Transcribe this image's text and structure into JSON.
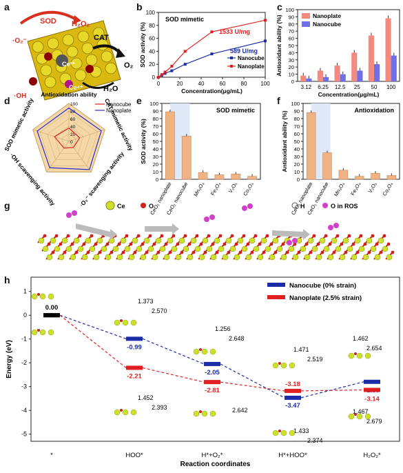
{
  "panels": {
    "a": {
      "label": "a",
      "labels": {
        "sod": "SOD",
        "h2o2": "H₂O₂",
        "o2_rad": "·O₂⁻",
        "cat": "CAT",
        "o2": "O₂",
        "ce3": "Ce³⁺",
        "ce4": "Ce⁴⁺",
        "h2o": "H₂O",
        "oh": "·OH"
      }
    },
    "b": {
      "label": "b"
    },
    "c": {
      "label": "c"
    },
    "d": {
      "label": "d",
      "legend": [
        "Nanocube",
        "Nanoplate"
      ],
      "axes": [
        "Antioxidation ability",
        "CAT mimetic activity",
        "·O₂⁻ scavenging activity",
        "·OH scavenging activity",
        "SOD mimetic activity"
      ]
    },
    "e": {
      "label": "e"
    },
    "f": {
      "label": "f"
    },
    "g": {
      "label": "g",
      "legend": {
        "ce": "Ce",
        "o": "O",
        "h": "H",
        "oros": "O in ROS"
      }
    },
    "h": {
      "label": "h"
    }
  },
  "chart_data": [
    {
      "id": "b",
      "type": "line",
      "title": "SOD mimetic",
      "xlabel": "Concentration(μg/mL)",
      "ylabel": "SOD activity (%)",
      "xlim": [
        0,
        100
      ],
      "ylim": [
        0,
        100
      ],
      "xticks": [
        "0",
        "20",
        "40",
        "60",
        "80",
        "100"
      ],
      "yticks": [
        "0",
        "20",
        "40",
        "60",
        "80",
        "100"
      ],
      "series": [
        {
          "name": "Nanocube",
          "color": "#1b2ca8",
          "x": [
            0,
            3.12,
            6.25,
            12.5,
            25,
            50,
            100
          ],
          "y": [
            0,
            3,
            6,
            10,
            20,
            36,
            56
          ]
        },
        {
          "name": "Nanoplate",
          "color": "#e02020",
          "x": [
            0,
            3.12,
            6.25,
            12.5,
            25,
            50,
            100
          ],
          "y": [
            0,
            4,
            8,
            17,
            40,
            70,
            88
          ]
        }
      ],
      "annotations": [
        {
          "text": "1533 U/mg",
          "color": "#e02020"
        },
        {
          "text": "589 U/mg",
          "color": "#1b2ca8"
        }
      ]
    },
    {
      "id": "c",
      "type": "bar",
      "xlabel": "Concentration(μg/mL)",
      "ylabel": "Antioxidant ability (%)",
      "ylim": [
        0,
        100
      ],
      "yticks": [
        "0",
        "10",
        "20",
        "30",
        "40",
        "50",
        "60",
        "70",
        "80",
        "90",
        "100"
      ],
      "categories": [
        "3.12",
        "6.25",
        "12.5",
        "25",
        "50",
        "100"
      ],
      "legend_position": "top-left",
      "series": [
        {
          "name": "Nanoplate",
          "color": "#f28a80",
          "values": [
            8,
            15,
            22,
            40,
            64,
            88
          ]
        },
        {
          "name": "Nanocube",
          "color": "#6f6fe6",
          "values": [
            4,
            6,
            10,
            15,
            24,
            36
          ]
        }
      ]
    },
    {
      "id": "d",
      "type": "radar",
      "rticks": [
        "0",
        "20",
        "40",
        "60",
        "80",
        "100"
      ],
      "axes": [
        "Antioxidation ability",
        "CAT mimetic activity",
        "·O₂⁻ scavenging activity",
        "·OH scavenging activity",
        "SOD mimetic activity"
      ],
      "series": [
        {
          "name": "Nanocube",
          "color": "#e02020",
          "values": [
            35,
            30,
            20,
            22,
            40
          ]
        },
        {
          "name": "Nanoplate",
          "color": "#2a2ad0",
          "values": [
            88,
            90,
            92,
            86,
            88
          ]
        }
      ]
    },
    {
      "id": "e",
      "type": "bar",
      "title": "SOD mimetic",
      "ylabel": "SOD activity (%)",
      "ylim": [
        0,
        100
      ],
      "yticks": [
        "0",
        "10",
        "20",
        "30",
        "40",
        "50",
        "60",
        "70",
        "80",
        "90",
        "100"
      ],
      "categories": [
        "CeO₂ nanoplate",
        "CeO₂ nanocube",
        "Mn₃O₄",
        "Fe₃O₄",
        "V₂O₅",
        "Co₃O₄"
      ],
      "values": [
        89,
        57,
        9,
        6,
        7,
        4
      ]
    },
    {
      "id": "f",
      "type": "bar",
      "title": "Antioxidation",
      "ylabel": "Antioxidant ability (%)",
      "ylim": [
        0,
        100
      ],
      "yticks": [
        "0",
        "10",
        "20",
        "30",
        "40",
        "50",
        "60",
        "70",
        "80",
        "90",
        "100"
      ],
      "categories": [
        "CeO₂ nanoplate",
        "CeO₂ nanocube",
        "Mn₃O₄",
        "Fe₃O₄",
        "V₂O₅",
        "Co₃O₄"
      ],
      "values": [
        88,
        35,
        12,
        4,
        8,
        5
      ]
    },
    {
      "id": "h",
      "type": "line",
      "xlabel": "Reaction coordinates",
      "ylabel": "Energy (eV)",
      "ylim": [
        -5.3,
        1.6
      ],
      "yticks": [
        "-5",
        "-4",
        "-3",
        "-2",
        "-1",
        "0",
        "1"
      ],
      "categories": [
        "*",
        "HOO*",
        "H*+O₂*",
        "H*+HOO*",
        "H₂O₂*"
      ],
      "series": [
        {
          "name": "Nanocube (0% strain)",
          "color": "#1b2ca8",
          "values": [
            0.0,
            -0.99,
            -2.05,
            -3.47,
            -2.8
          ],
          "labels": [
            "0.00",
            "-0.99",
            "-2.05",
            "-3.47",
            "-2.80"
          ]
        },
        {
          "name": "Nanoplate (2.5% strain)",
          "color": "#e02020",
          "values": [
            0.0,
            -2.21,
            -2.81,
            -3.18,
            -3.14
          ],
          "labels": [
            "0.00",
            "-2.21",
            "-2.81",
            "-3.18",
            "-3.14"
          ]
        }
      ],
      "bond_labels": [
        {
          "stage": "HOO*",
          "top": [
            "1.373",
            "2.570"
          ],
          "bottom": [
            "1.452",
            "2.393"
          ]
        },
        {
          "stage": "H*+O₂*",
          "top": [
            "1.256",
            "2.648"
          ],
          "bottom": [
            "2.642"
          ]
        },
        {
          "stage": "H*+HOO*",
          "top": [
            "1.471",
            "2.519"
          ],
          "bottom": [
            "1.433",
            "2.374"
          ]
        },
        {
          "stage": "H₂O₂*",
          "top": [
            "1.462",
            "2.654"
          ],
          "bottom": [
            "1.467",
            "2.679"
          ]
        }
      ]
    }
  ],
  "colors": {
    "bar": "#efb384",
    "bar_edge": "#c9895c",
    "axis": "#222"
  }
}
